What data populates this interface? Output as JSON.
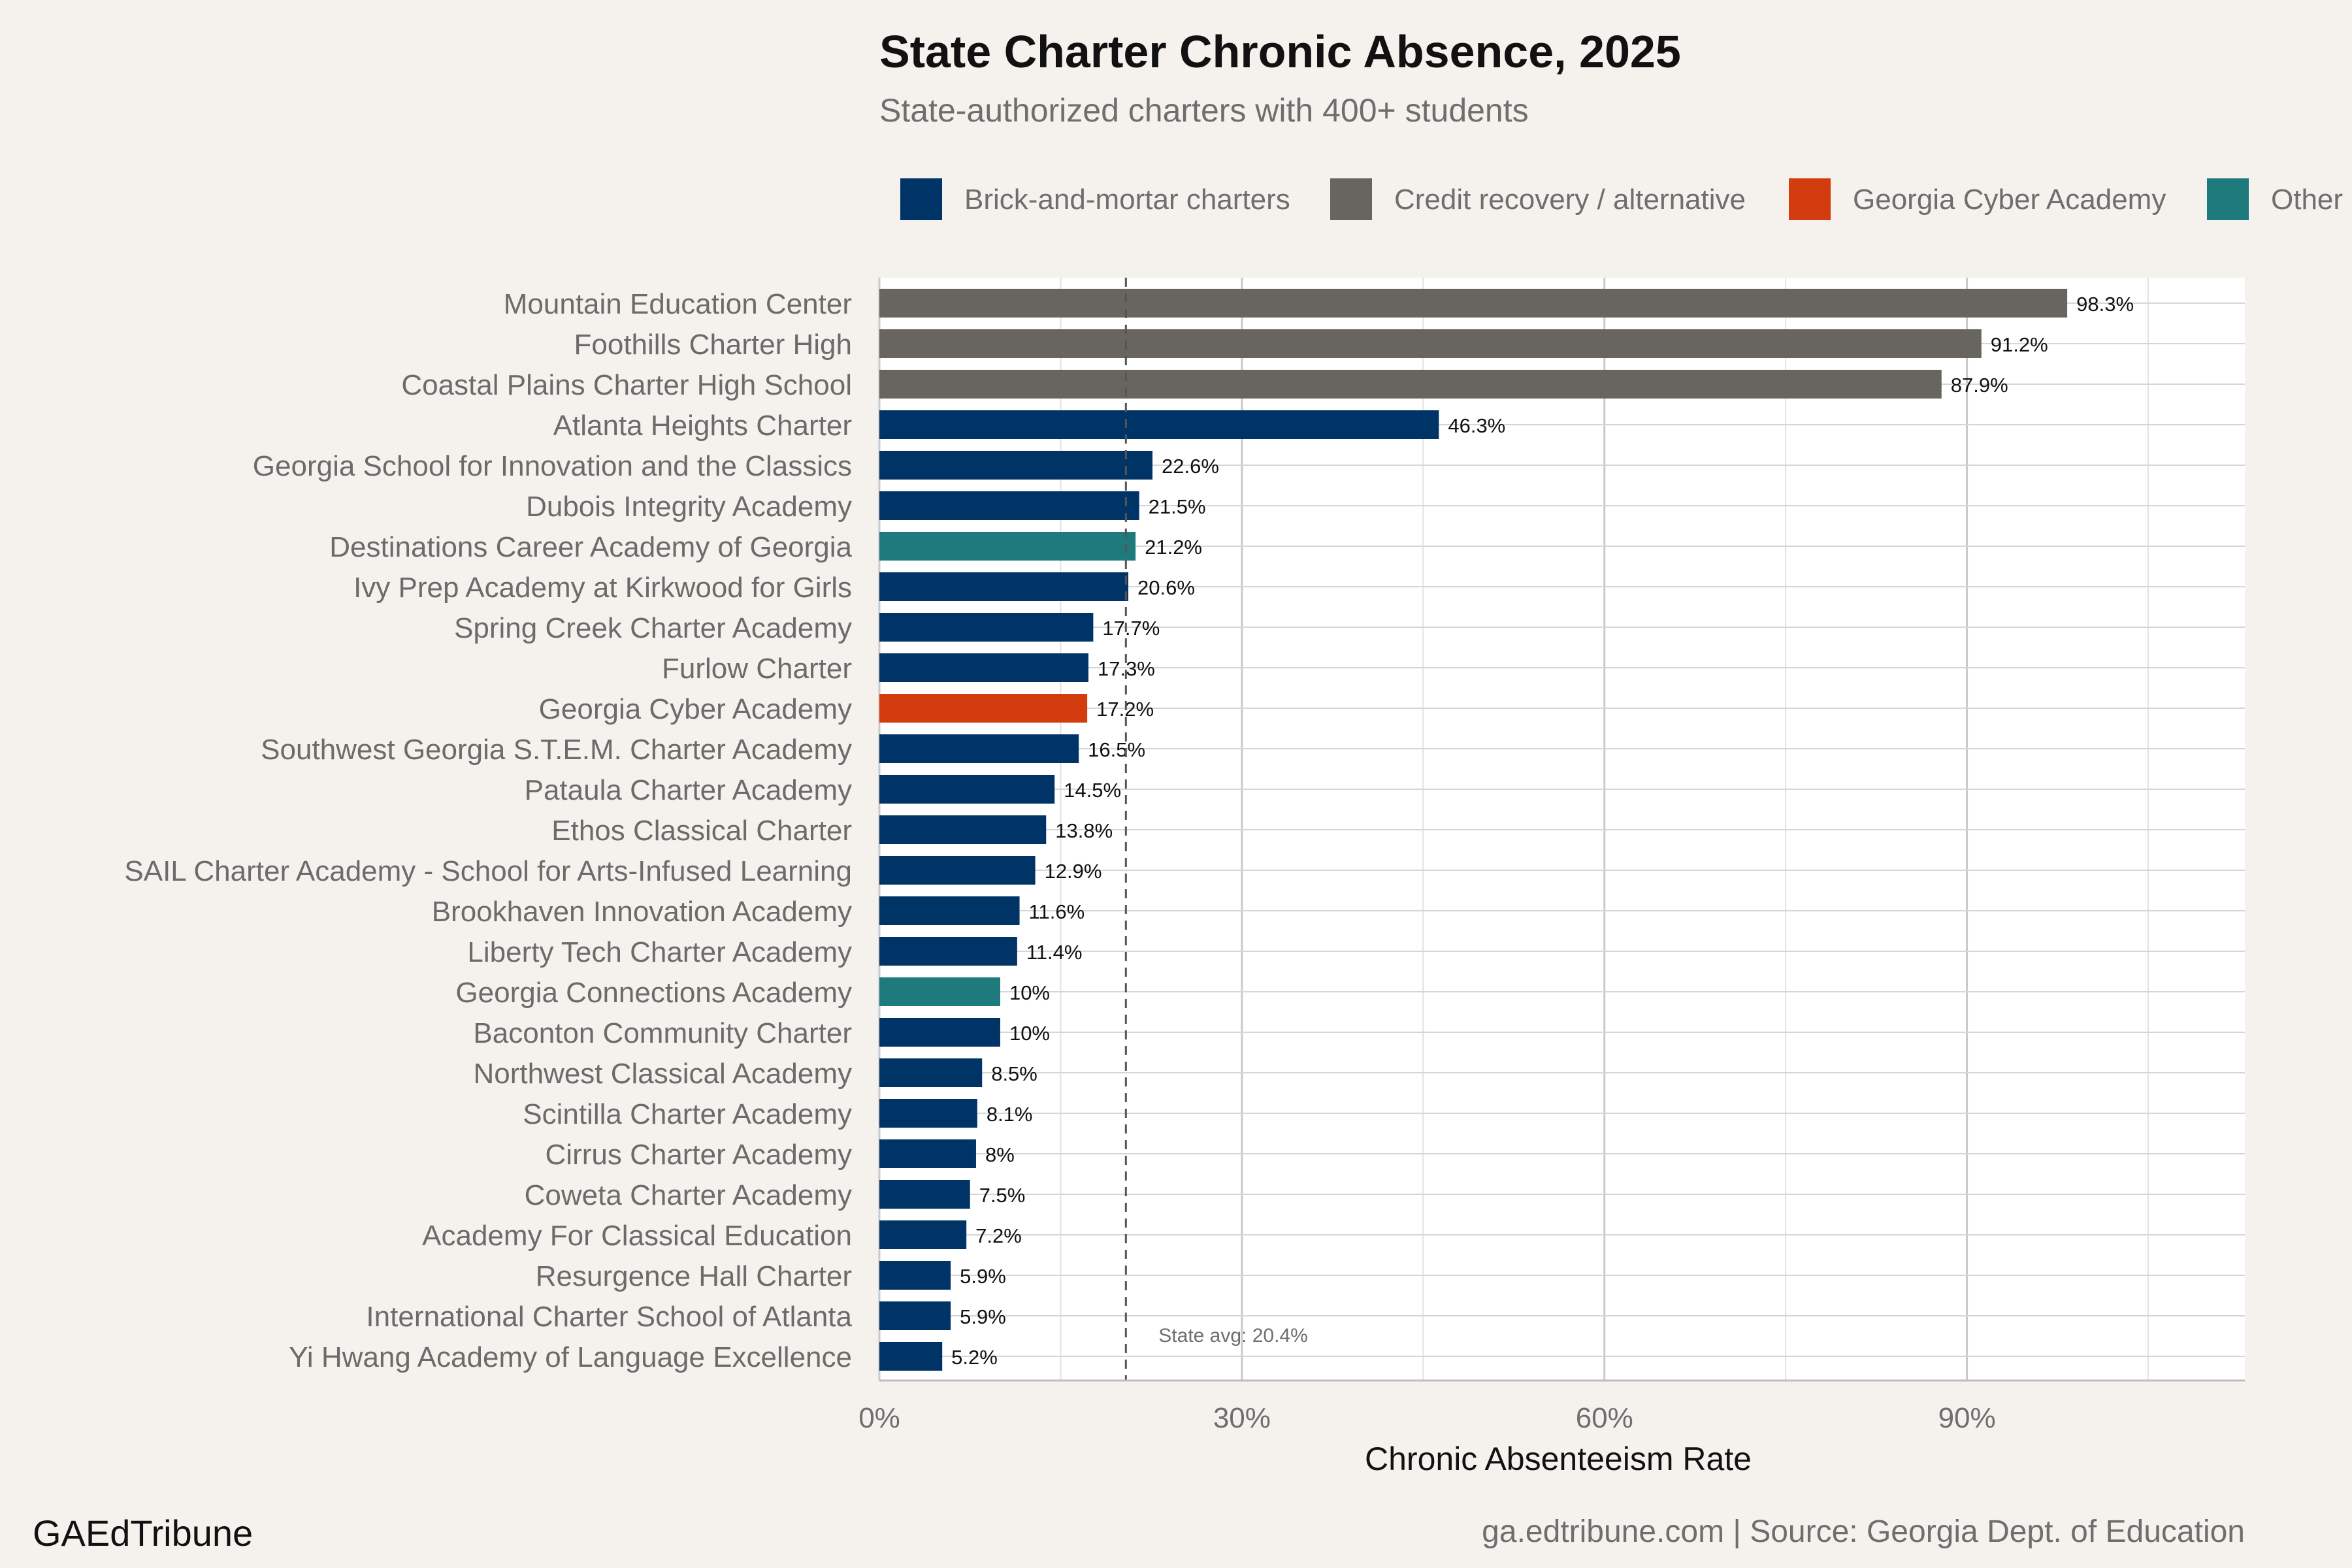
{
  "chart_data": {
    "type": "bar",
    "orientation": "horizontal",
    "title": "State Charter Chronic Absence, 2025",
    "subtitle": "State-authorized charters with 400+ students",
    "xlabel": "Chronic Absenteeism Rate",
    "ylabel": "",
    "xlim": [
      0,
      113
    ],
    "xticks": [
      0,
      30,
      60,
      90
    ],
    "xtick_labels": [
      "0%",
      "30%",
      "60%",
      "90%"
    ],
    "grid": true,
    "legend_position": "top",
    "legend": [
      {
        "key": "brick",
        "label": "Brick-and-mortar charters",
        "color": "#003366"
      },
      {
        "key": "credit",
        "label": "Credit recovery / alternative",
        "color": "#68645f"
      },
      {
        "key": "cyber",
        "label": "Georgia Cyber Academy",
        "color": "#d23c0f"
      },
      {
        "key": "other",
        "label": "Other",
        "color": "#1e7a7d"
      }
    ],
    "reference_line": {
      "value": 20.4,
      "label": "State avg: 20.4%"
    },
    "bars": [
      {
        "name": "Mountain Education Center",
        "value": 98.3,
        "label": "98.3%",
        "group": "credit"
      },
      {
        "name": "Foothills Charter High",
        "value": 91.2,
        "label": "91.2%",
        "group": "credit"
      },
      {
        "name": "Coastal Plains Charter High School",
        "value": 87.9,
        "label": "87.9%",
        "group": "credit"
      },
      {
        "name": "Atlanta Heights Charter",
        "value": 46.3,
        "label": "46.3%",
        "group": "brick"
      },
      {
        "name": "Georgia School for Innovation and the Classics",
        "value": 22.6,
        "label": "22.6%",
        "group": "brick"
      },
      {
        "name": "Dubois Integrity Academy",
        "value": 21.5,
        "label": "21.5%",
        "group": "brick"
      },
      {
        "name": "Destinations Career Academy of Georgia",
        "value": 21.2,
        "label": "21.2%",
        "group": "other"
      },
      {
        "name": "Ivy Prep Academy at Kirkwood for Girls",
        "value": 20.6,
        "label": "20.6%",
        "group": "brick"
      },
      {
        "name": "Spring Creek Charter Academy",
        "value": 17.7,
        "label": "17.7%",
        "group": "brick"
      },
      {
        "name": "Furlow Charter",
        "value": 17.3,
        "label": "17.3%",
        "group": "brick"
      },
      {
        "name": "Georgia Cyber Academy",
        "value": 17.2,
        "label": "17.2%",
        "group": "cyber"
      },
      {
        "name": "Southwest Georgia S.T.E.M. Charter Academy",
        "value": 16.5,
        "label": "16.5%",
        "group": "brick"
      },
      {
        "name": "Pataula Charter Academy",
        "value": 14.5,
        "label": "14.5%",
        "group": "brick"
      },
      {
        "name": "Ethos Classical Charter",
        "value": 13.8,
        "label": "13.8%",
        "group": "brick"
      },
      {
        "name": "SAIL Charter Academy - School for Arts-Infused Learning",
        "value": 12.9,
        "label": "12.9%",
        "group": "brick"
      },
      {
        "name": "Brookhaven Innovation Academy",
        "value": 11.6,
        "label": "11.6%",
        "group": "brick"
      },
      {
        "name": "Liberty Tech Charter Academy",
        "value": 11.4,
        "label": "11.4%",
        "group": "brick"
      },
      {
        "name": "Georgia Connections Academy",
        "value": 10.0,
        "label": "10%",
        "group": "other"
      },
      {
        "name": "Baconton Community Charter",
        "value": 10.0,
        "label": "10%",
        "group": "brick"
      },
      {
        "name": "Northwest Classical Academy",
        "value": 8.5,
        "label": "8.5%",
        "group": "brick"
      },
      {
        "name": "Scintilla Charter Academy",
        "value": 8.1,
        "label": "8.1%",
        "group": "brick"
      },
      {
        "name": "Cirrus Charter Academy",
        "value": 8.0,
        "label": "8%",
        "group": "brick"
      },
      {
        "name": "Coweta Charter Academy",
        "value": 7.5,
        "label": "7.5%",
        "group": "brick"
      },
      {
        "name": "Academy For Classical Education",
        "value": 7.2,
        "label": "7.2%",
        "group": "brick"
      },
      {
        "name": "Resurgence Hall Charter",
        "value": 5.9,
        "label": "5.9%",
        "group": "brick"
      },
      {
        "name": "International Charter School of Atlanta",
        "value": 5.9,
        "label": "5.9%",
        "group": "brick"
      },
      {
        "name": "Yi Hwang Academy of Language Excellence",
        "value": 5.2,
        "label": "5.2%",
        "group": "brick"
      }
    ]
  },
  "footer": {
    "brand": "GAEdTribune",
    "source": "ga.edtribune.com | Source: Georgia Dept. of Education"
  },
  "colors": {
    "background": "#f5f2ed",
    "panel": "#ffffff",
    "grid": "#cfcfcf",
    "reference_line": "#555555"
  }
}
